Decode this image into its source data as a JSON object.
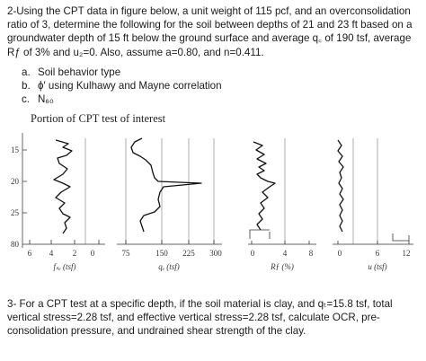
{
  "problem2": {
    "text": "2-Using the CPT data in figure below, a unit weight of 115 pcf, and an overconsolidation ratio of 3, determine the following for the soil between depths of 21 and 23 ft based on a groundwater depth of 15 ft below the ground surface and average q꜀ of 190 tsf, average Rƒ of 3% and u₂=0. Also, assume a=0.80, and n=0.411.",
    "items": [
      {
        "marker": "a.",
        "text": "Soil behavior type"
      },
      {
        "marker": "b.",
        "text": "ϕ′ using Kulhawy and Mayne correlation"
      },
      {
        "marker": "c.",
        "text": "N₆₀"
      }
    ]
  },
  "figure": {
    "title": "Portion of CPT test of interest",
    "depth_ticks": [
      "15",
      "20",
      "25",
      "80"
    ],
    "panels": [
      {
        "ticks": [
          "6",
          "4",
          "2",
          "0"
        ],
        "label": "fₛₑ (tsf)"
      },
      {
        "ticks": [
          "75",
          "150",
          "225",
          "300"
        ],
        "label": "qₑ (tsf)"
      },
      {
        "ticks": [
          "0",
          "4",
          "8"
        ],
        "label": "Rƒ (%)"
      },
      {
        "ticks": [
          "0",
          "6",
          "12"
        ],
        "label": "u (tsf)"
      }
    ]
  },
  "problem3": {
    "text": "3- For a CPT test at a specific depth, if the soil material is clay, and qₜ=15.8 tsf, total vertical stress=2.28 tsf, and effective vertical stress=2.28 tsf, calculate OCR, pre-consolidation pressure, and undrained shear strength of the clay."
  }
}
